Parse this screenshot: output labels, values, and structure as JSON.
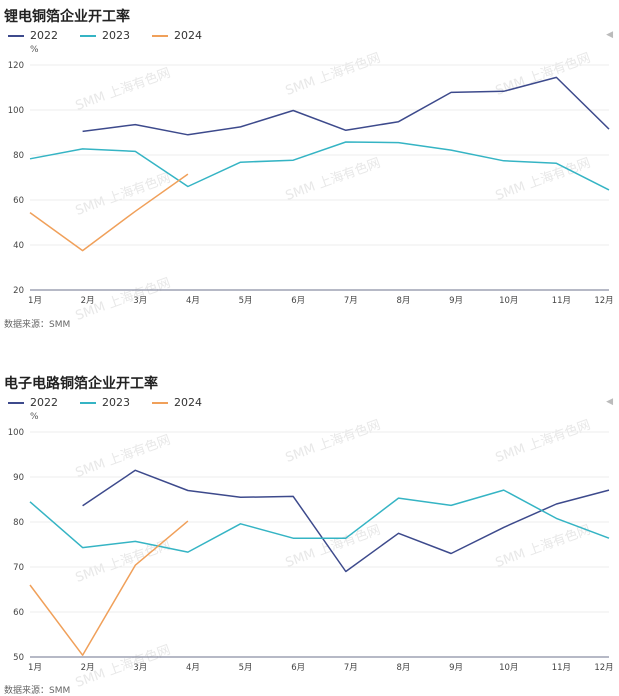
{
  "charts": [
    {
      "title": "锂电铜箔企业开工率",
      "unit": "%",
      "source": "数据来源：SMM",
      "legend": [
        {
          "label": "2022",
          "color": "#3d4a8c"
        },
        {
          "label": "2023",
          "color": "#35b4c4"
        },
        {
          "label": "2024",
          "color": "#f0a05a"
        }
      ]
    },
    {
      "title": "电子电路铜箔企业开工率",
      "unit": "%",
      "source": "数据来源：SMM",
      "legend": [
        {
          "label": "2022",
          "color": "#3d4a8c"
        },
        {
          "label": "2023",
          "color": "#35b4c4"
        },
        {
          "label": "2024",
          "color": "#f0a05a"
        }
      ]
    }
  ],
  "watermark": "SMM 上海有色网",
  "chart_data": [
    {
      "type": "line",
      "title": "锂电铜箔企业开工率",
      "xlabel": "",
      "ylabel": "%",
      "ylim": [
        20,
        120
      ],
      "yticks": [
        20,
        40,
        60,
        80,
        100,
        120
      ],
      "grid": true,
      "legend_position": "top-left",
      "categories": [
        "1月",
        "2月",
        "3月",
        "4月",
        "5月",
        "6月",
        "7月",
        "8月",
        "9月",
        "10月",
        "11月",
        "12月"
      ],
      "series": [
        {
          "name": "2022",
          "color": "#3d4a8c",
          "values": [
            null,
            90.5,
            93.5,
            89,
            92.5,
            99.8,
            91,
            94.8,
            107.8,
            108.3,
            114.5,
            91.5
          ]
        },
        {
          "name": "2023",
          "color": "#35b4c4",
          "values": [
            78.3,
            82.7,
            81.6,
            66,
            76.8,
            77.7,
            85.8,
            85.5,
            82.2,
            77.4,
            76.3,
            64.5
          ]
        },
        {
          "name": "2024",
          "color": "#f0a05a",
          "values": [
            54.4,
            37.5,
            55,
            71.5,
            null,
            null,
            null,
            null,
            null,
            null,
            null,
            null
          ]
        }
      ]
    },
    {
      "type": "line",
      "title": "电子电路铜箔企业开工率",
      "xlabel": "",
      "ylabel": "%",
      "ylim": [
        50,
        100
      ],
      "yticks": [
        50,
        60,
        70,
        80,
        90,
        100
      ],
      "grid": true,
      "legend_position": "top-left",
      "categories": [
        "1月",
        "2月",
        "3月",
        "4月",
        "5月",
        "6月",
        "7月",
        "8月",
        "9月",
        "10月",
        "11月",
        "12月"
      ],
      "series": [
        {
          "name": "2022",
          "color": "#3d4a8c",
          "values": [
            null,
            83.6,
            91.5,
            87,
            85.5,
            85.7,
            69,
            77.5,
            73,
            78.8,
            84,
            87.1
          ]
        },
        {
          "name": "2023",
          "color": "#35b4c4",
          "values": [
            84.5,
            74.3,
            75.7,
            73.3,
            79.6,
            76.4,
            76.4,
            85.3,
            83.7,
            87.1,
            80.8,
            76.4
          ]
        },
        {
          "name": "2024",
          "color": "#f0a05a",
          "values": [
            66,
            50.4,
            70.4,
            80.2,
            null,
            null,
            null,
            null,
            null,
            null,
            null,
            null
          ]
        }
      ]
    }
  ]
}
